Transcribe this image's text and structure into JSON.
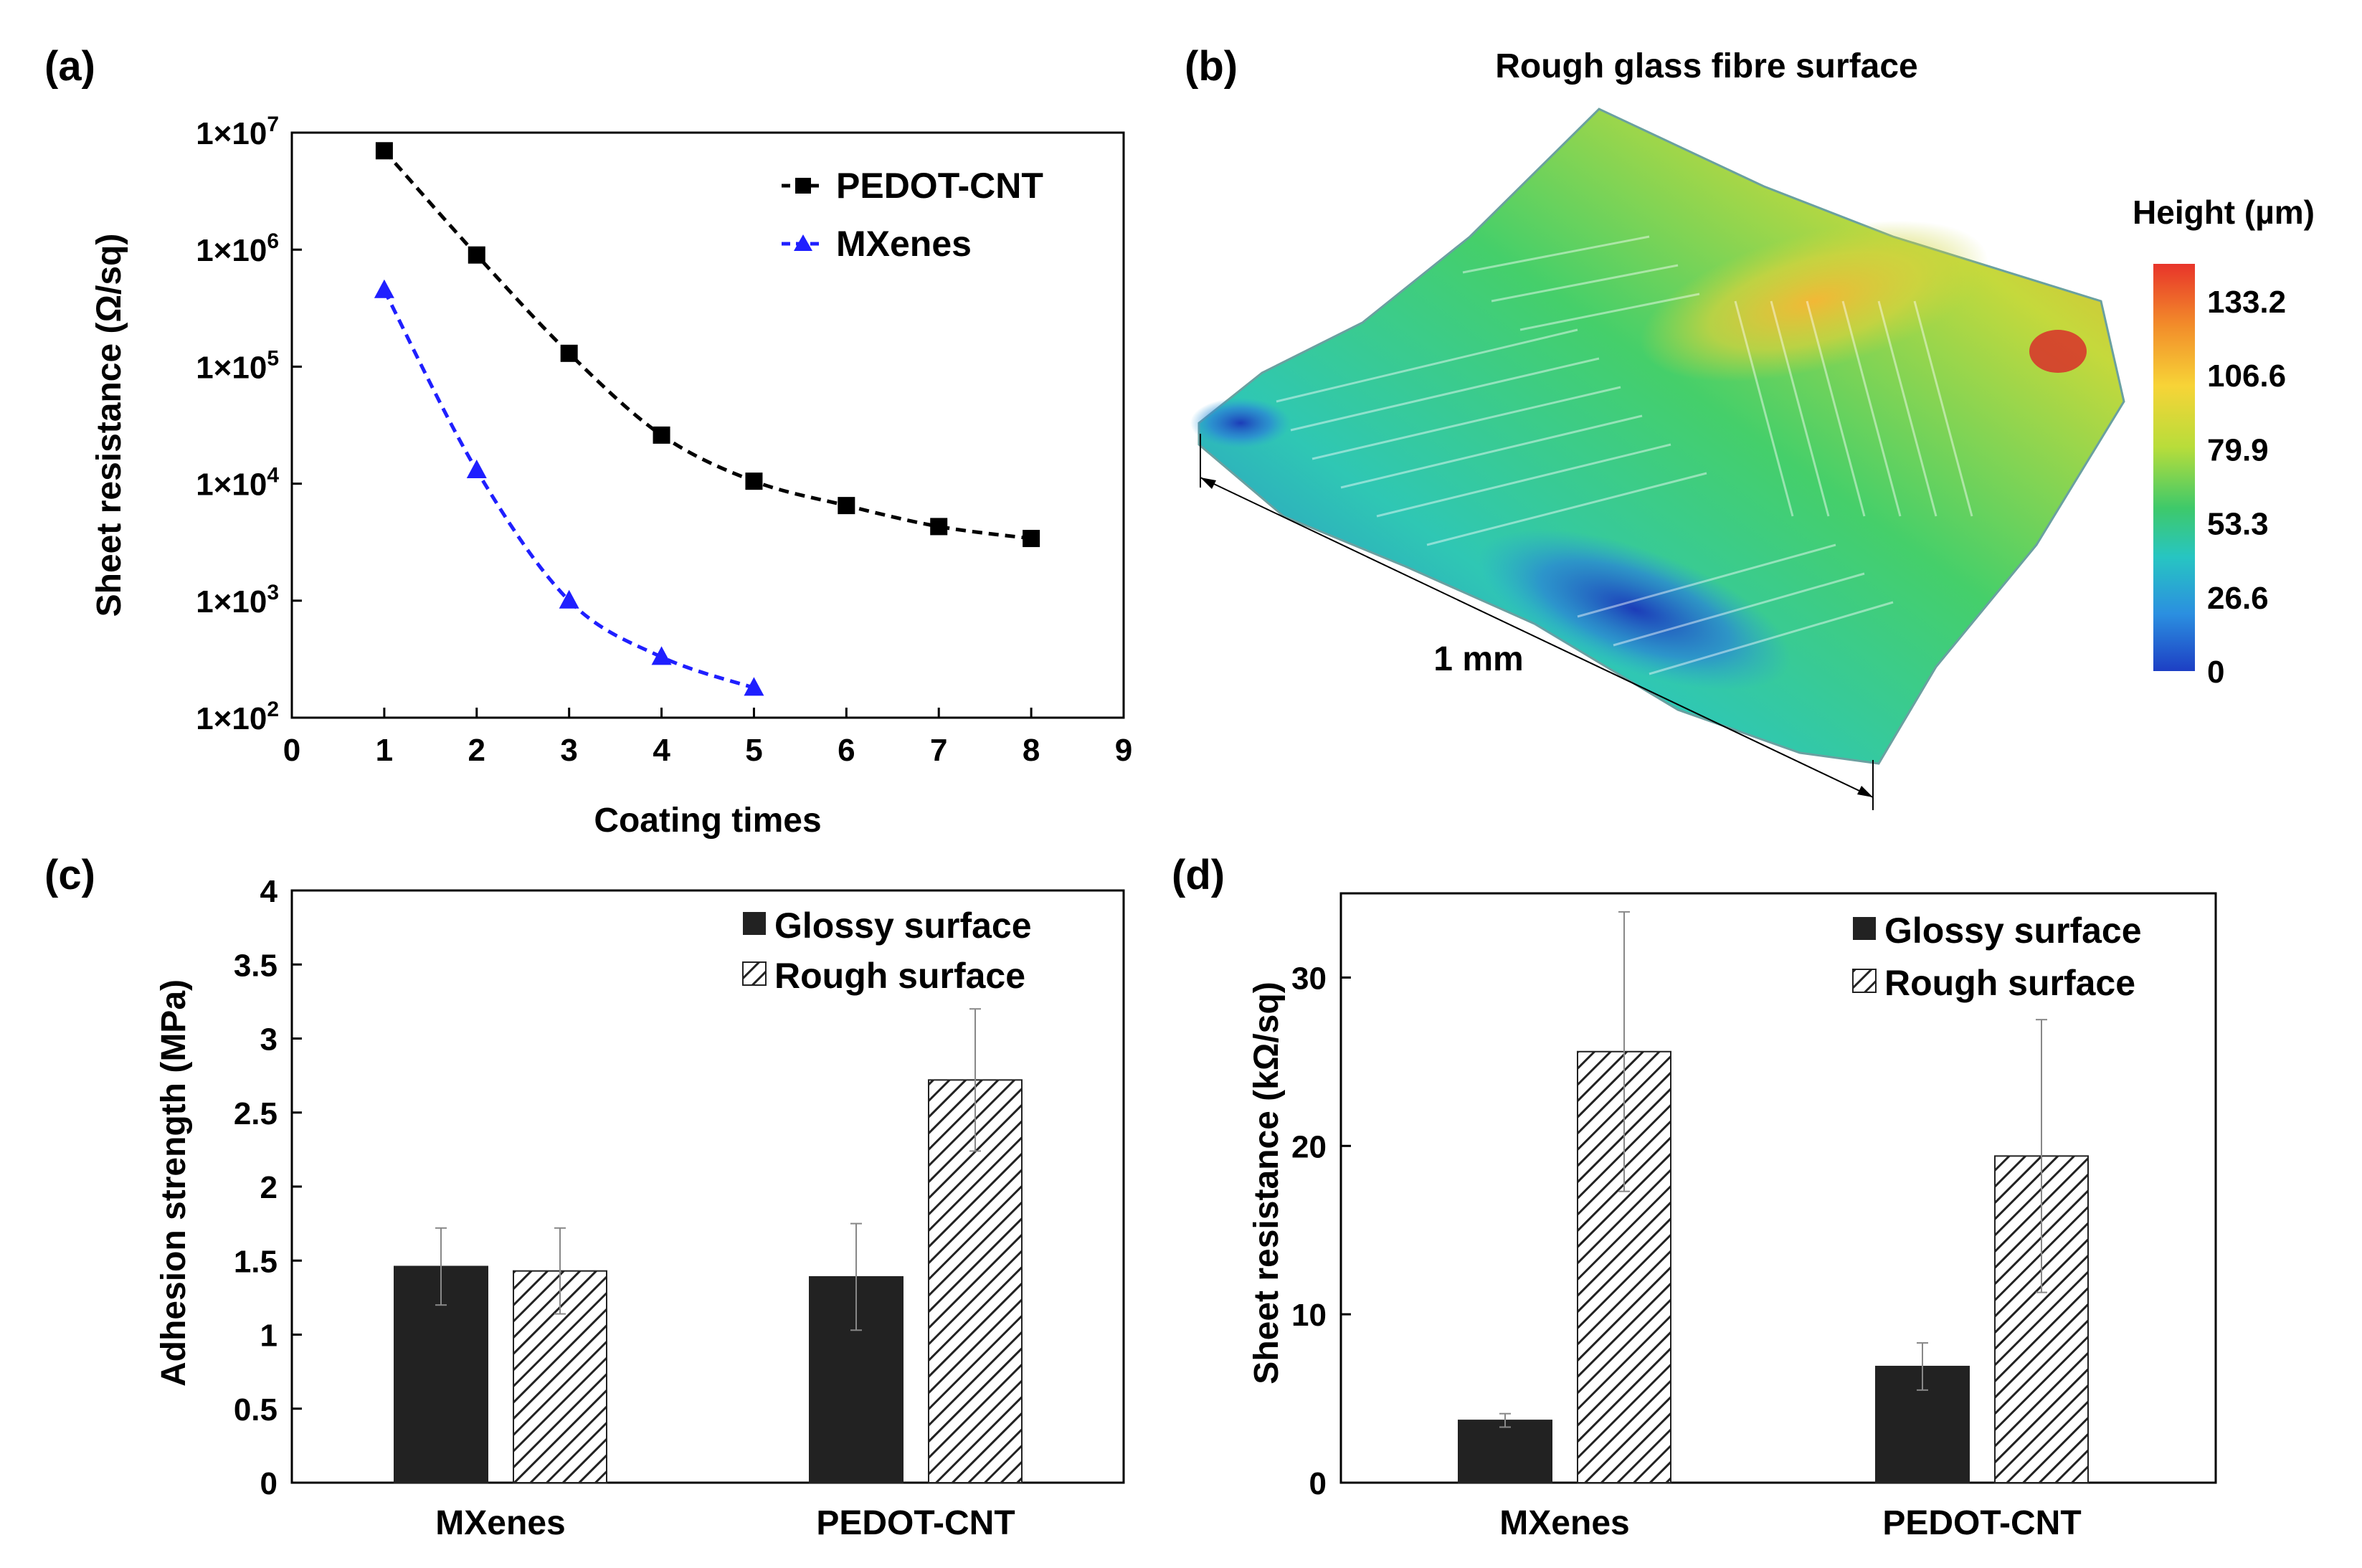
{
  "panels": {
    "a": {
      "label": "(a)"
    },
    "b": {
      "label": "(b)"
    },
    "c": {
      "label": "(c)"
    },
    "d": {
      "label": "(d)"
    }
  },
  "chart_data": [
    {
      "id": "a",
      "type": "line",
      "ylog": true,
      "xlabel": "Coating times",
      "ylabel": "Sheet resistance (Ω/sq)",
      "xlim": [
        0,
        9
      ],
      "ylim": [
        100,
        10000000
      ],
      "xticks": [
        "0",
        "1",
        "2",
        "3",
        "4",
        "5",
        "6",
        "7",
        "8",
        "9"
      ],
      "yticks": [
        {
          "base": "1×10",
          "exp": "2",
          "value": 100
        },
        {
          "base": "1×10",
          "exp": "3",
          "value": 1000
        },
        {
          "base": "1×10",
          "exp": "4",
          "value": 10000
        },
        {
          "base": "1×10",
          "exp": "5",
          "value": 100000
        },
        {
          "base": "1×10",
          "exp": "6",
          "value": 1000000
        },
        {
          "base": "1×10",
          "exp": "7",
          "value": 10000000
        }
      ],
      "legend_position": "top-right",
      "series": [
        {
          "name": "PEDOT-CNT",
          "color": "#000000",
          "marker": "square",
          "x": [
            1,
            2,
            3,
            4,
            5,
            6,
            7,
            8
          ],
          "y": [
            7000000,
            900000,
            130000,
            26000,
            10500,
            6500,
            4300,
            3400
          ]
        },
        {
          "name": "MXenes",
          "color": "#1f1fff",
          "marker": "triangle",
          "x": [
            1,
            2,
            3,
            4,
            5
          ],
          "y": [
            450000,
            13000,
            1000,
            330,
            180
          ]
        }
      ]
    },
    {
      "id": "b",
      "type": "heatmap",
      "title": "Rough glass fibre surface",
      "scale_label": "1 mm",
      "colorbar": {
        "title": "Height (µm)",
        "ticks": [
          "133.2",
          "106.6",
          "79.9",
          "53.3",
          "26.6",
          "0"
        ],
        "colors": [
          "#e8342a",
          "#f28c2a",
          "#f7d437",
          "#b8dd3a",
          "#3ec96a",
          "#27c5c2",
          "#2b8fe0",
          "#1d3fc4"
        ]
      }
    },
    {
      "id": "c",
      "type": "bar",
      "ylabel": "Adhesion strength (MPa)",
      "ylim": [
        0,
        4
      ],
      "yticks": [
        "0",
        "0.5",
        "1",
        "1.5",
        "2",
        "2.5",
        "3",
        "3.5",
        "4"
      ],
      "categories": [
        "MXenes",
        "PEDOT-CNT"
      ],
      "legend_position": "top-right",
      "series": [
        {
          "name": "Glossy surface",
          "values": [
            1.46,
            1.39
          ],
          "errors": [
            0.26,
            0.36
          ]
        },
        {
          "name": "Rough surface",
          "values": [
            1.43,
            2.72
          ],
          "errors": [
            0.29,
            0.48
          ]
        }
      ]
    },
    {
      "id": "d",
      "type": "bar",
      "ylabel": "Sheet resistance (kΩ/sq)",
      "ylim": [
        0,
        35
      ],
      "yticks": [
        "0",
        "10",
        "20",
        "30"
      ],
      "categories": [
        "MXenes",
        "PEDOT-CNT"
      ],
      "legend_position": "top-right",
      "series": [
        {
          "name": "Glossy surface",
          "values": [
            3.7,
            6.9
          ],
          "errors": [
            0.4,
            1.4
          ]
        },
        {
          "name": "Rough surface",
          "values": [
            25.6,
            19.4
          ],
          "errors": [
            8.3,
            8.1
          ]
        }
      ]
    }
  ]
}
